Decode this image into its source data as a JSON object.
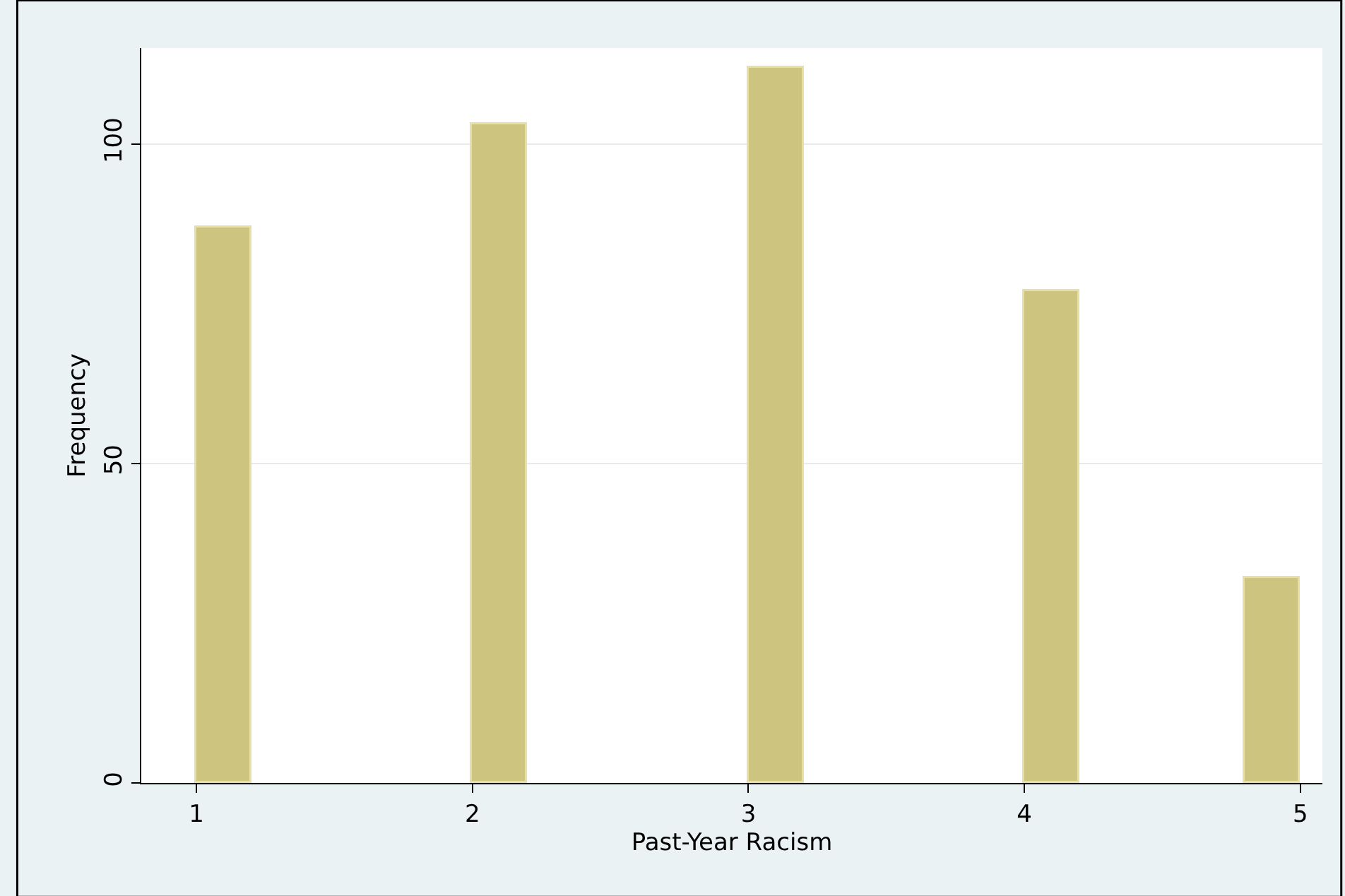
{
  "chart_data": {
    "type": "histogram",
    "xlabel": "Past-Year Racism",
    "ylabel": "Frequency",
    "bins": [
      1,
      1.2,
      1.4,
      1.6,
      1.8,
      2,
      2.2,
      2.4,
      2.6,
      2.8,
      3,
      3.2,
      3.4,
      3.6,
      3.8,
      4,
      4.2,
      4.4,
      4.6,
      4.8,
      5
    ],
    "values": [
      87,
      0,
      0,
      0,
      0,
      103,
      0,
      0,
      0,
      0,
      112,
      0,
      0,
      0,
      0,
      77,
      0,
      0,
      0,
      32
    ],
    "color": "#cdc47f",
    "xlim": [
      0.8,
      5.08
    ],
    "xticks": [
      1,
      2,
      3,
      4,
      5
    ],
    "ylim": [
      0,
      115
    ],
    "yticks": [
      0,
      50,
      100
    ],
    "grid": "y"
  }
}
